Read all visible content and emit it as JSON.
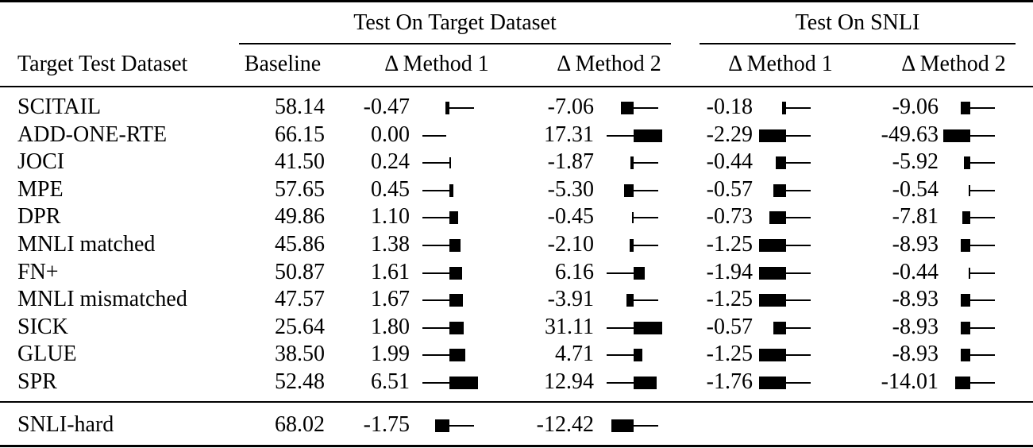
{
  "table": {
    "group_headers": {
      "target": "Test On Target Dataset",
      "snli": "Test On SNLI"
    },
    "columns": {
      "dataset": "Target Test Dataset",
      "baseline": "Baseline",
      "target_m1": "Δ Method 1",
      "target_m2": "Δ Method 2",
      "snli_m1": "Δ Method 1",
      "snli_m2": "Δ Method 2"
    },
    "rows": [
      {
        "dataset": "SCITAIL",
        "baseline": "58.14",
        "target_m1": "-0.47",
        "target_m2": "-7.06",
        "snli_m1": "-0.18",
        "snli_m2": "-9.06"
      },
      {
        "dataset": "ADD-ONE-RTE",
        "baseline": "66.15",
        "target_m1": "0.00",
        "target_m2": "17.31",
        "snli_m1": "-2.29",
        "snli_m2": "-49.63"
      },
      {
        "dataset": "JOCI",
        "baseline": "41.50",
        "target_m1": "0.24",
        "target_m2": "-1.87",
        "snli_m1": "-0.44",
        "snli_m2": "-5.92"
      },
      {
        "dataset": "MPE",
        "baseline": "57.65",
        "target_m1": "0.45",
        "target_m2": "-5.30",
        "snli_m1": "-0.57",
        "snli_m2": "-0.54"
      },
      {
        "dataset": "DPR",
        "baseline": "49.86",
        "target_m1": "1.10",
        "target_m2": "-0.45",
        "snli_m1": "-0.73",
        "snli_m2": "-7.81"
      },
      {
        "dataset": "MNLI matched",
        "baseline": "45.86",
        "target_m1": "1.38",
        "target_m2": "-2.10",
        "snli_m1": "-1.25",
        "snli_m2": "-8.93"
      },
      {
        "dataset": "FN+",
        "baseline": "50.87",
        "target_m1": "1.61",
        "target_m2": "6.16",
        "snli_m1": "-1.94",
        "snli_m2": "-0.44"
      },
      {
        "dataset": "MNLI mismatched",
        "baseline": "47.57",
        "target_m1": "1.67",
        "target_m2": "-3.91",
        "snli_m1": "-1.25",
        "snli_m2": "-8.93"
      },
      {
        "dataset": "SICK",
        "baseline": "25.64",
        "target_m1": "1.80",
        "target_m2": "31.11",
        "snli_m1": "-0.57",
        "snli_m2": "-8.93"
      },
      {
        "dataset": "GLUE",
        "baseline": "38.50",
        "target_m1": "1.99",
        "target_m2": "4.71",
        "snli_m1": "-1.25",
        "snli_m2": "-8.93"
      },
      {
        "dataset": "SPR",
        "baseline": "52.48",
        "target_m1": "6.51",
        "target_m2": "12.94",
        "snli_m1": "-1.76",
        "snli_m2": "-14.01"
      }
    ],
    "summary_row": {
      "dataset": "SNLI-hard",
      "baseline": "68.02",
      "target_m1": "-1.75",
      "target_m2": "-12.42"
    }
  }
}
